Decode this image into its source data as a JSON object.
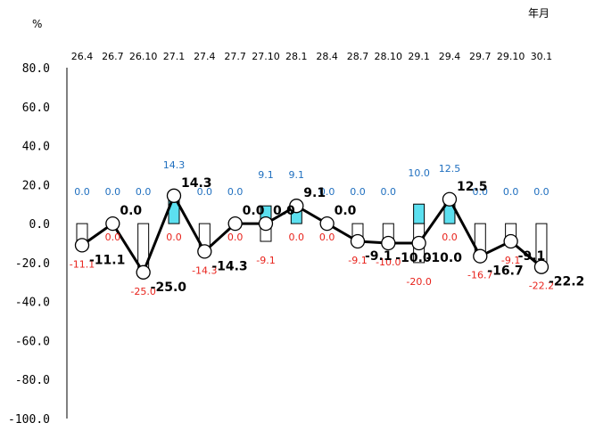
{
  "y_unit": "%",
  "x_unit": "年月",
  "chart_data": {
    "type": "bar",
    "categories": [
      "26.4",
      "26.7",
      "26.10",
      "27.1",
      "27.4",
      "27.7",
      "27.10",
      "28.1",
      "28.4",
      "28.7",
      "28.10",
      "29.1",
      "29.4",
      "29.7",
      "29.10",
      "30.1"
    ],
    "ylim": [
      -100,
      80
    ],
    "yticks": [
      "80.0",
      "60.0",
      "40.0",
      "20.0",
      "0.0",
      "-20.0",
      "-40.0",
      "-60.0",
      "-80.0",
      "-100.0"
    ],
    "ytick_values": [
      80,
      60,
      40,
      20,
      0,
      -20,
      -40,
      -60,
      -80,
      -100
    ],
    "grid": false,
    "series": [
      {
        "kind": "bar",
        "color": "#5ce0f0",
        "values": [
          0.0,
          0.0,
          0.0,
          14.3,
          0.0,
          0.0,
          9.1,
          9.1,
          0.0,
          0.0,
          0.0,
          10.0,
          12.5,
          0.0,
          0.0,
          0.0
        ],
        "labels": [
          "0.0",
          "0.0",
          "0.0",
          "14.3",
          "0.0",
          "0.0",
          "9.1",
          "9.1",
          "0.0",
          "0.0",
          "0.0",
          "10.0",
          "12.5",
          "0.0",
          "0.0",
          "0.0"
        ]
      },
      {
        "kind": "bar",
        "color": "#ffffff",
        "values": [
          -11.1,
          0.0,
          -25.0,
          0.0,
          -14.3,
          0.0,
          -9.1,
          0.0,
          0.0,
          -9.1,
          -10.0,
          -20.0,
          0.0,
          -16.7,
          -9.1,
          -22.2
        ],
        "labels": [
          "-11.1",
          "0.0",
          "-25.0",
          "0.0",
          "-14.3",
          "0.0",
          "-9.1",
          "0.0",
          "0.0",
          "-9.1",
          "-10.0",
          "-20.0",
          "0.0",
          "-16.7",
          "-9.1",
          "-22.2"
        ]
      },
      {
        "kind": "line",
        "color": "#000000",
        "values": [
          -11.1,
          0.0,
          -25.0,
          14.3,
          -14.3,
          0.0,
          0.0,
          9.1,
          0.0,
          -9.1,
          -10.0,
          -10.0,
          12.5,
          -16.7,
          -9.1,
          -22.2
        ],
        "labels": [
          "-11.1",
          "0.0",
          "-25.0",
          "14.3",
          "-14.3",
          "0.0",
          "0.0",
          "9.1",
          "0.0",
          "-9.1",
          "-10.0",
          "-10.0",
          "12.5",
          "-16.7",
          "-9.1",
          "-22.2"
        ]
      }
    ]
  }
}
